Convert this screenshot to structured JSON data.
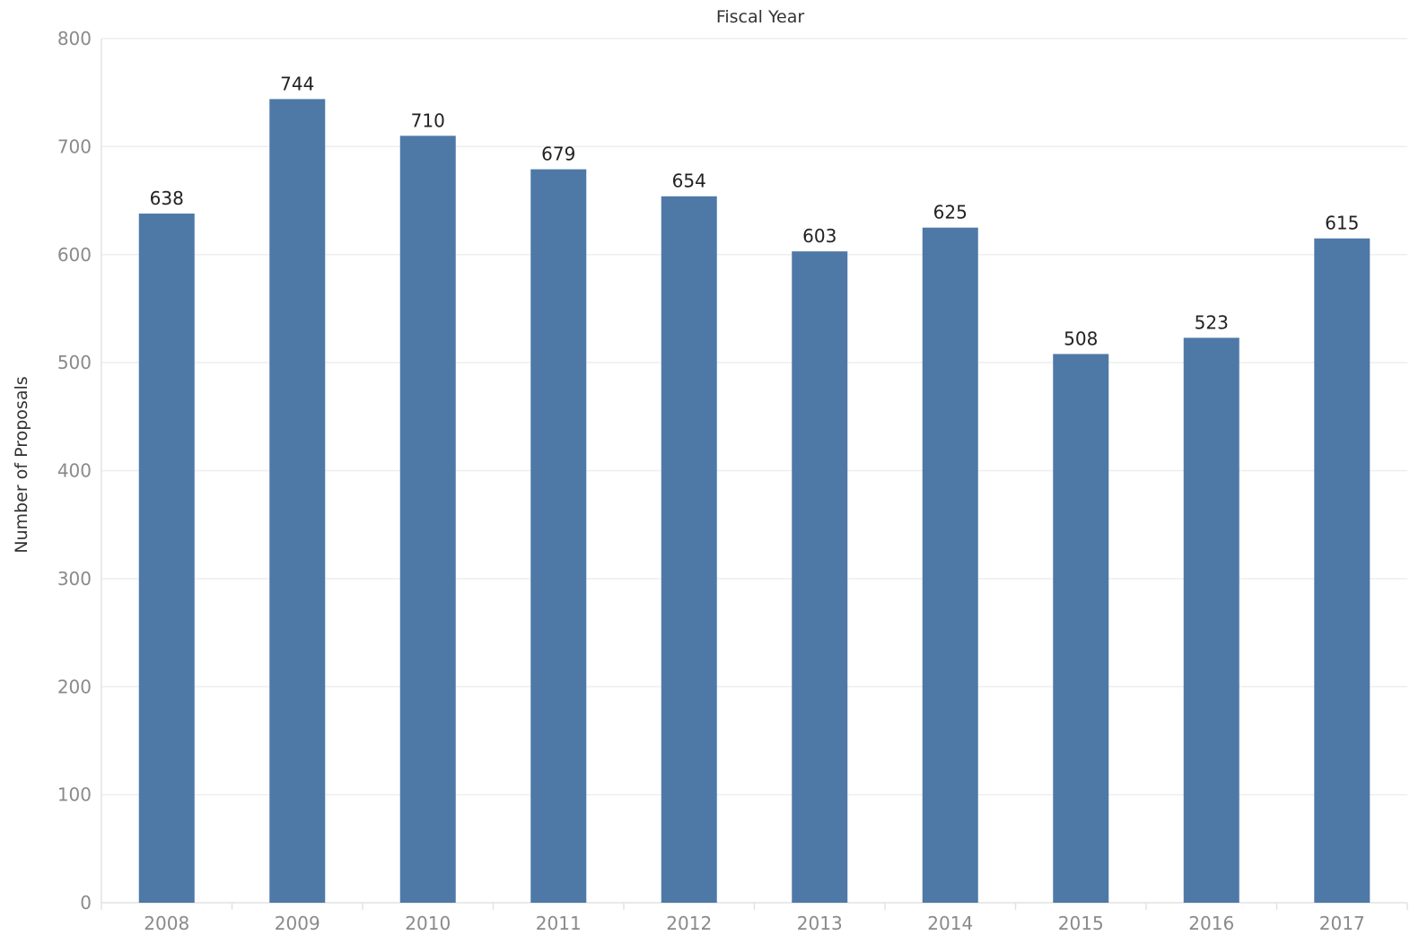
{
  "colors": {
    "bar": "#4e79a7",
    "grid": "#eeeeee",
    "axis": "#e2e2e2",
    "tick_text": "#8a8a8a",
    "label_text": "#222222"
  },
  "chart_data": {
    "type": "bar",
    "title": "",
    "xlabel": "Fiscal Year",
    "xlabel_position": "top",
    "ylabel": "Number of Proposals",
    "categories": [
      "2008",
      "2009",
      "2010",
      "2011",
      "2012",
      "2013",
      "2014",
      "2015",
      "2016",
      "2017"
    ],
    "values": [
      638,
      744,
      710,
      679,
      654,
      603,
      625,
      508,
      523,
      615
    ],
    "ylim": [
      0,
      800
    ],
    "yticks": [
      0,
      100,
      200,
      300,
      400,
      500,
      600,
      700,
      800
    ],
    "grid": true,
    "legend": "none",
    "data_labels": true
  }
}
